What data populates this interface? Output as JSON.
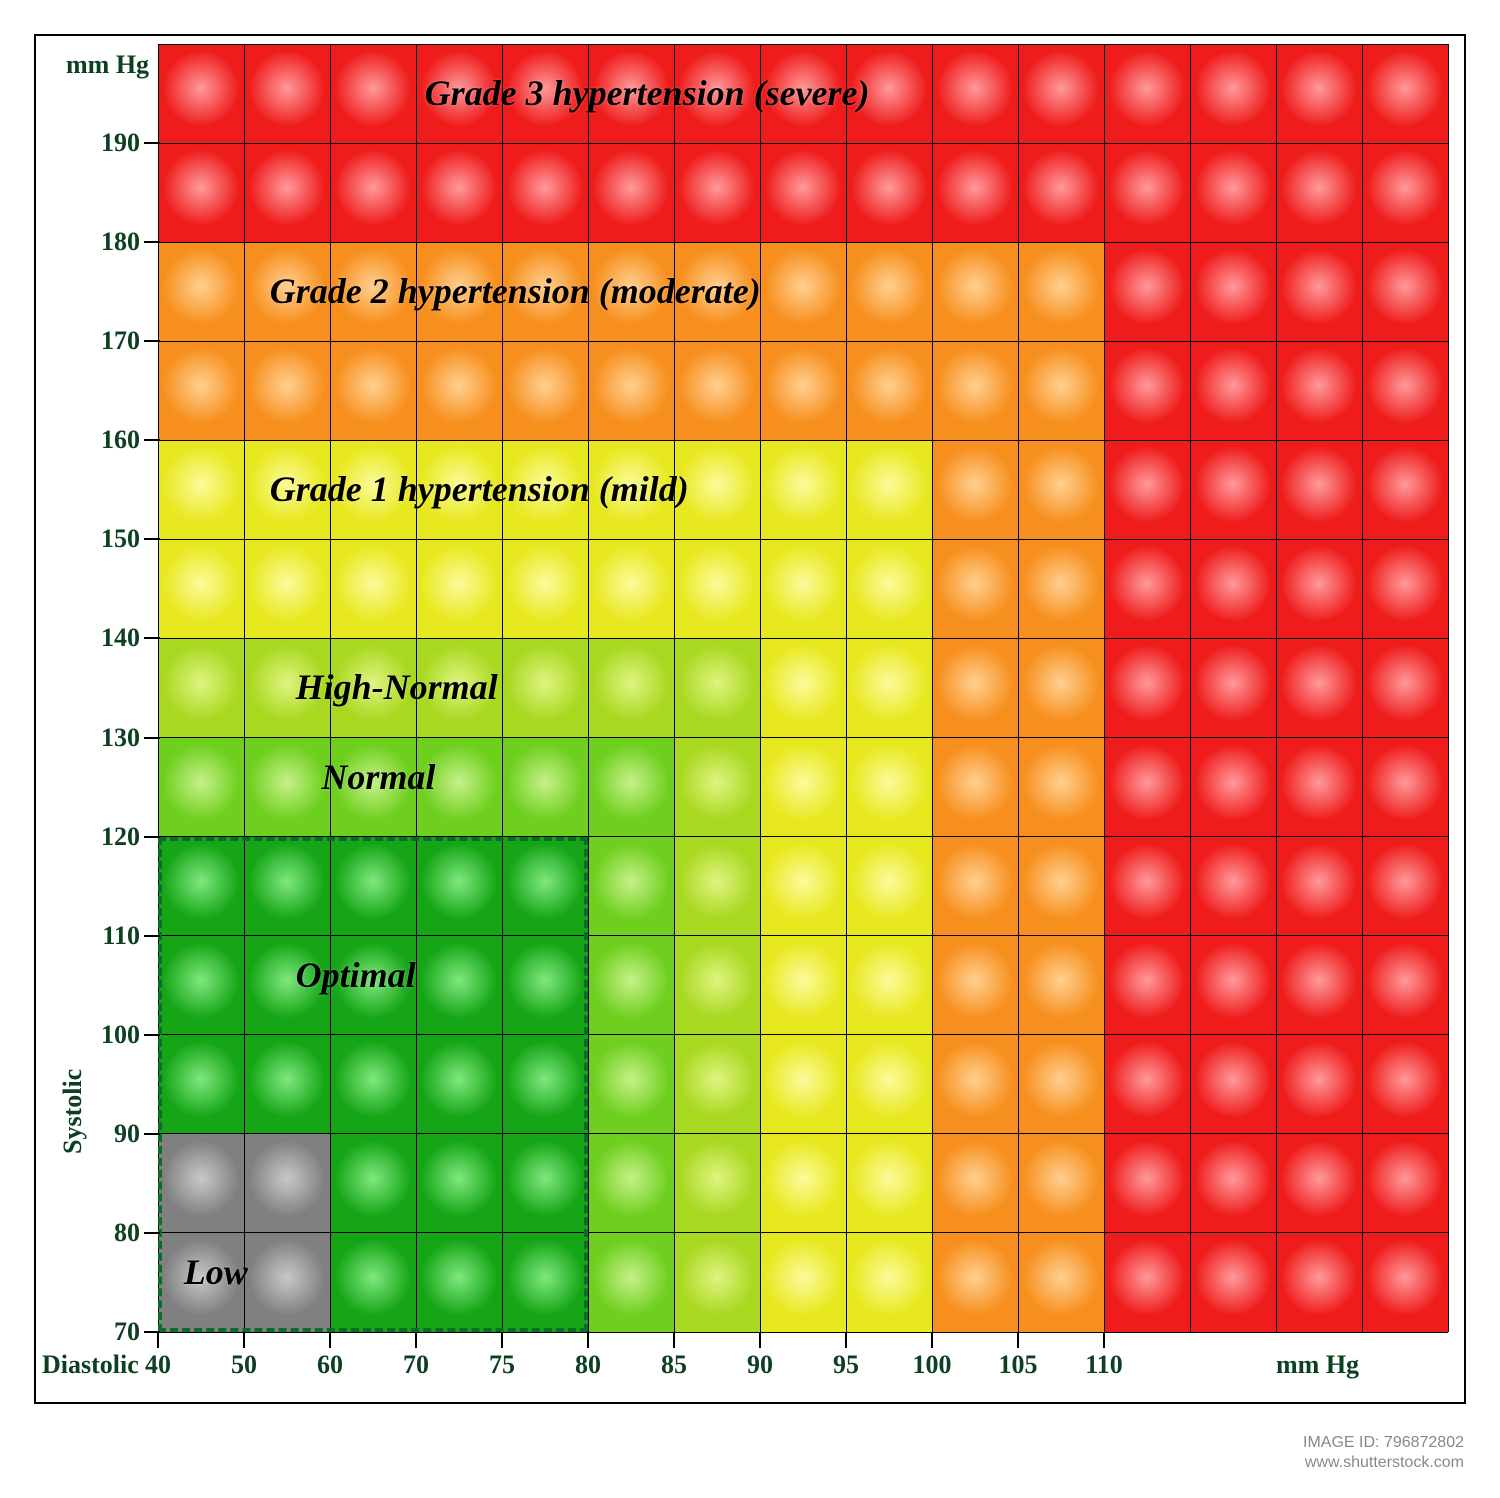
{
  "bp_chart": {
    "type": "heatmap",
    "y_axis": {
      "title": "Systolic",
      "unit": "mm Hg",
      "title_fontsize": 26,
      "tick_fontsize": 26,
      "ticks": [
        70,
        80,
        90,
        100,
        110,
        120,
        130,
        140,
        150,
        160,
        170,
        180,
        190
      ],
      "color": "#0d4020"
    },
    "x_axis": {
      "title": "Diastolic",
      "unit": "mm Hg",
      "title_fontsize": 26,
      "tick_fontsize": 26,
      "ticks": [
        40,
        50,
        60,
        70,
        75,
        80,
        85,
        90,
        95,
        100,
        105,
        110
      ],
      "color": "#0d4020"
    },
    "grid_cols": 15,
    "grid_rows": 13,
    "grid_color": "#000000",
    "border_color": "#000000",
    "background_color": "#ffffff",
    "categories": {
      "low": {
        "color": "#808080",
        "highlight": "#c8c8c8",
        "label": "Low"
      },
      "optimal": {
        "color": "#16a516",
        "highlight": "#7fe87f",
        "label": "Optimal"
      },
      "normal": {
        "color": "#6fcf1f",
        "highlight": "#c6f18a",
        "label": "Normal"
      },
      "highnormal": {
        "color": "#a8d820",
        "highlight": "#e0f480",
        "label": "High-Normal"
      },
      "grade1": {
        "color": "#e8e820",
        "highlight": "#fbfb9c",
        "label": "Grade 1 hypertension (mild)"
      },
      "grade2": {
        "color": "#f78f1e",
        "highlight": "#ffd090",
        "label": "Grade 2 hypertension (moderate)"
      },
      "grade3": {
        "color": "#ef1c1c",
        "highlight": "#ff9a9a",
        "label": "Grade 3 hypertension (severe)"
      }
    },
    "optimal_dashed_border_color": "#0b6b2b",
    "region_label_fontsize": 36,
    "region_label_positions": {
      "grade3": {
        "col": 3.1,
        "row": 12.5
      },
      "grade2": {
        "col": 1.3,
        "row": 10.5
      },
      "grade1": {
        "col": 1.3,
        "row": 8.5
      },
      "highnormal": {
        "col": 1.6,
        "row": 6.5
      },
      "normal": {
        "col": 1.9,
        "row": 5.6
      },
      "optimal": {
        "col": 1.6,
        "row": 3.6
      },
      "low": {
        "col": 0.3,
        "row": 0.6
      }
    }
  },
  "footer": {
    "image_id_label": "IMAGE ID: 796872802",
    "site": "www.shutterstock.com"
  }
}
